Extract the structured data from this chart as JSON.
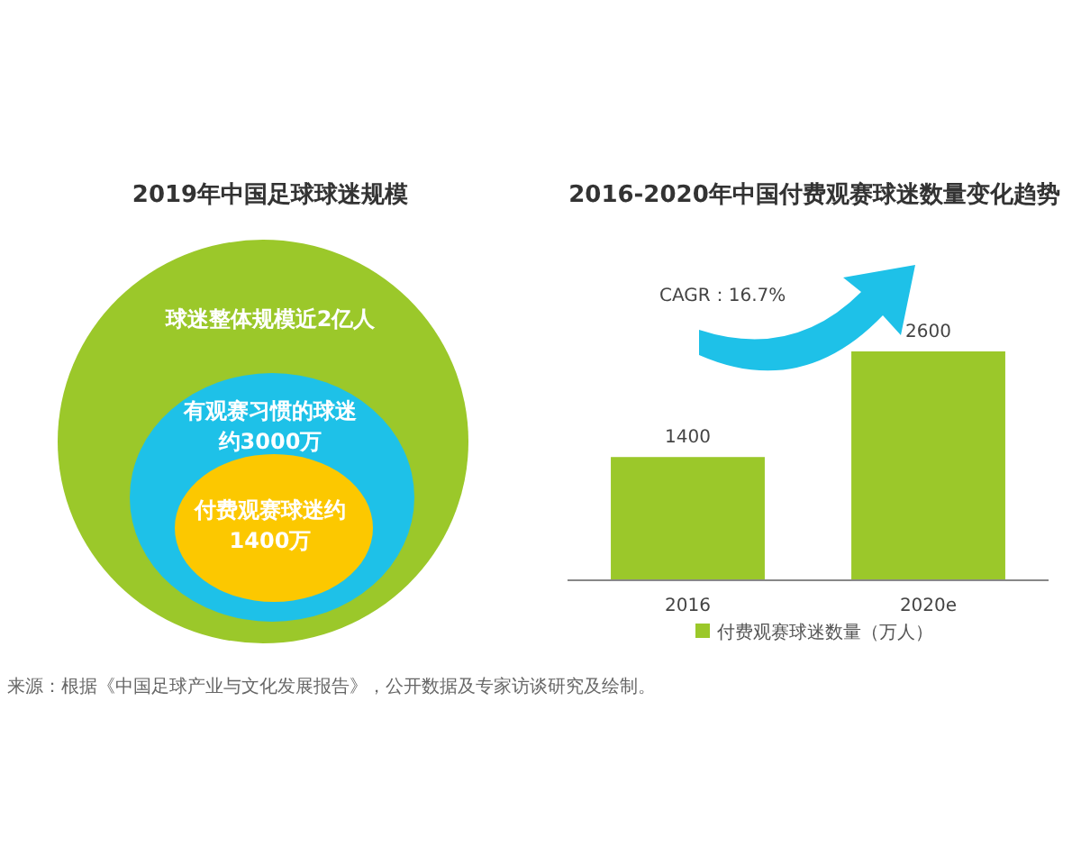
{
  "chart_data": [
    {
      "type": "other",
      "title": "2019年中国足球球迷规模",
      "colors": [
        "#9bc82a",
        "#1ec1e8",
        "#fcc800"
      ],
      "annotations": [
        "球迷整体规模近2亿人",
        "有观赛习惯的球迷",
        "约3000万",
        "付费观赛球迷约",
        "1400万",
        "来源：根据《中国足球产业与文化发展报告》，公开数据及专家访谈研究及绘制。"
      ]
    },
    {
      "type": "bar",
      "title": "2016-2020年中国付费观赛球迷数量变化趋势",
      "categories": [
        "2016",
        "2020e"
      ],
      "series": [
        {
          "name": "付费观赛球迷数量（万人）",
          "color": "#9bc82a",
          "values": [
            1400,
            2600
          ]
        }
      ],
      "data_labels": true,
      "legend": "bottom",
      "annotations": [
        "CAGR：16.7%"
      ]
    }
  ]
}
